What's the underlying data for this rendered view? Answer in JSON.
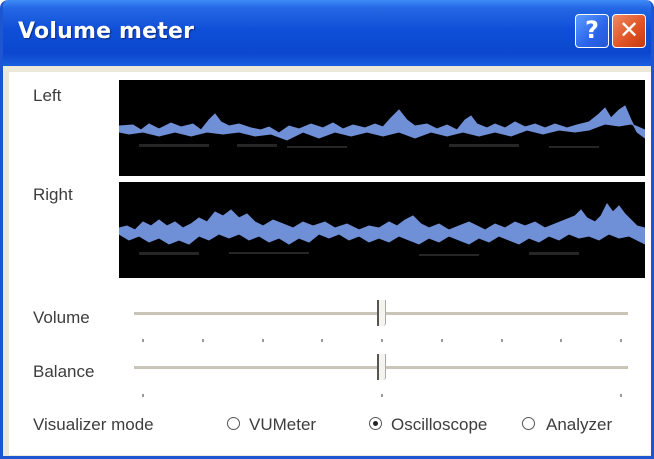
{
  "window": {
    "title": "Volume meter",
    "help_glyph": "?",
    "close_glyph": "✕"
  },
  "waves": {
    "left_label": "Left",
    "right_label": "Right",
    "fill_color": "#6f8fd6",
    "bg_color": "#000000"
  },
  "volume": {
    "label": "Volume",
    "level_fraction": 0.5
  },
  "balance": {
    "label": "Balance",
    "level_fraction": 0.5
  },
  "visualizer": {
    "label": "Visualizer mode",
    "options": [
      {
        "label": "VUMeter",
        "selected": false
      },
      {
        "label": "Oscilloscope",
        "selected": true
      },
      {
        "label": "Analyzer",
        "selected": false
      }
    ]
  }
}
